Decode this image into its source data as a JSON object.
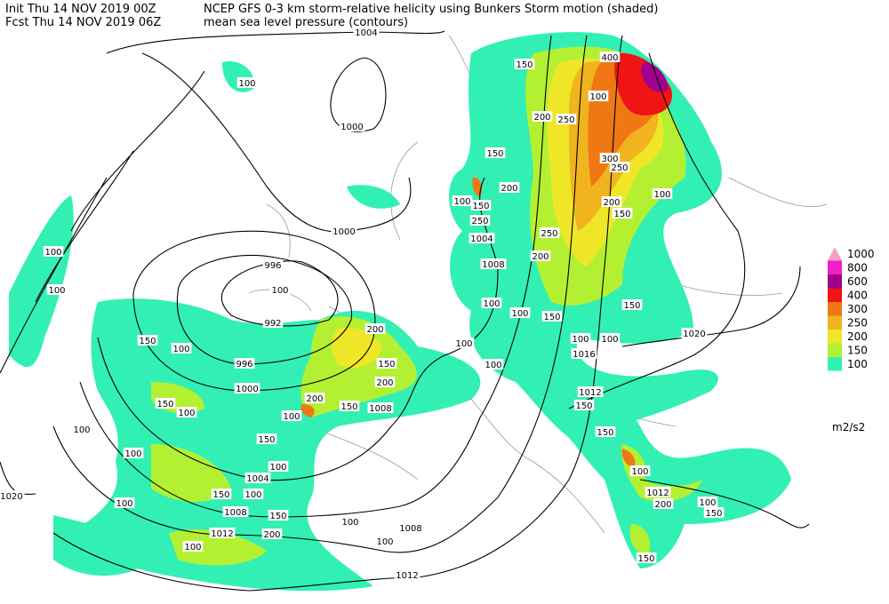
{
  "header": {
    "init": "Init  Thu 14 NOV 2019 00Z",
    "fcst": "Fcst Thu 14 NOV 2019 06Z",
    "title": "NCEP GFS 0-3 km storm-relative helicity using Bunkers Storm motion (shaded)",
    "subtitle": "mean sea level pressure (contours)"
  },
  "legend": {
    "units": "m2/s2",
    "levels": [
      {
        "value": 1000,
        "color": "#f4a0c8"
      },
      {
        "value": 800,
        "color": "#f01ec8"
      },
      {
        "value": 600,
        "color": "#a0008c"
      },
      {
        "value": 400,
        "color": "#f01414"
      },
      {
        "value": 300,
        "color": "#f07814"
      },
      {
        "value": 250,
        "color": "#f0b41e"
      },
      {
        "value": 200,
        "color": "#f0e628"
      },
      {
        "value": 150,
        "color": "#b4f032"
      },
      {
        "value": 100,
        "color": "#32f0b4"
      }
    ]
  },
  "map": {
    "contour_labels": [
      "1004",
      "1000",
      "1000",
      "996",
      "992",
      "996",
      "1000",
      "1008",
      "1004",
      "1008",
      "1012",
      "1008",
      "1012",
      "1020",
      "1004",
      "1008",
      "1016",
      "1012",
      "1020",
      "1012"
    ],
    "helicity_labels": [
      "100",
      "100",
      "100",
      "150",
      "200",
      "250",
      "400",
      "300",
      "250",
      "200",
      "150",
      "100",
      "100",
      "150",
      "200",
      "150",
      "250",
      "100",
      "250",
      "200",
      "150",
      "100",
      "100",
      "150",
      "100",
      "100",
      "150",
      "100",
      "100",
      "200",
      "150",
      "200",
      "200",
      "150",
      "100",
      "100",
      "100",
      "150",
      "100",
      "100",
      "150",
      "100",
      "100",
      "100",
      "150",
      "100",
      "150",
      "200",
      "100",
      "100",
      "100",
      "150",
      "150",
      "100",
      "200",
      "100",
      "150",
      "150"
    ]
  }
}
